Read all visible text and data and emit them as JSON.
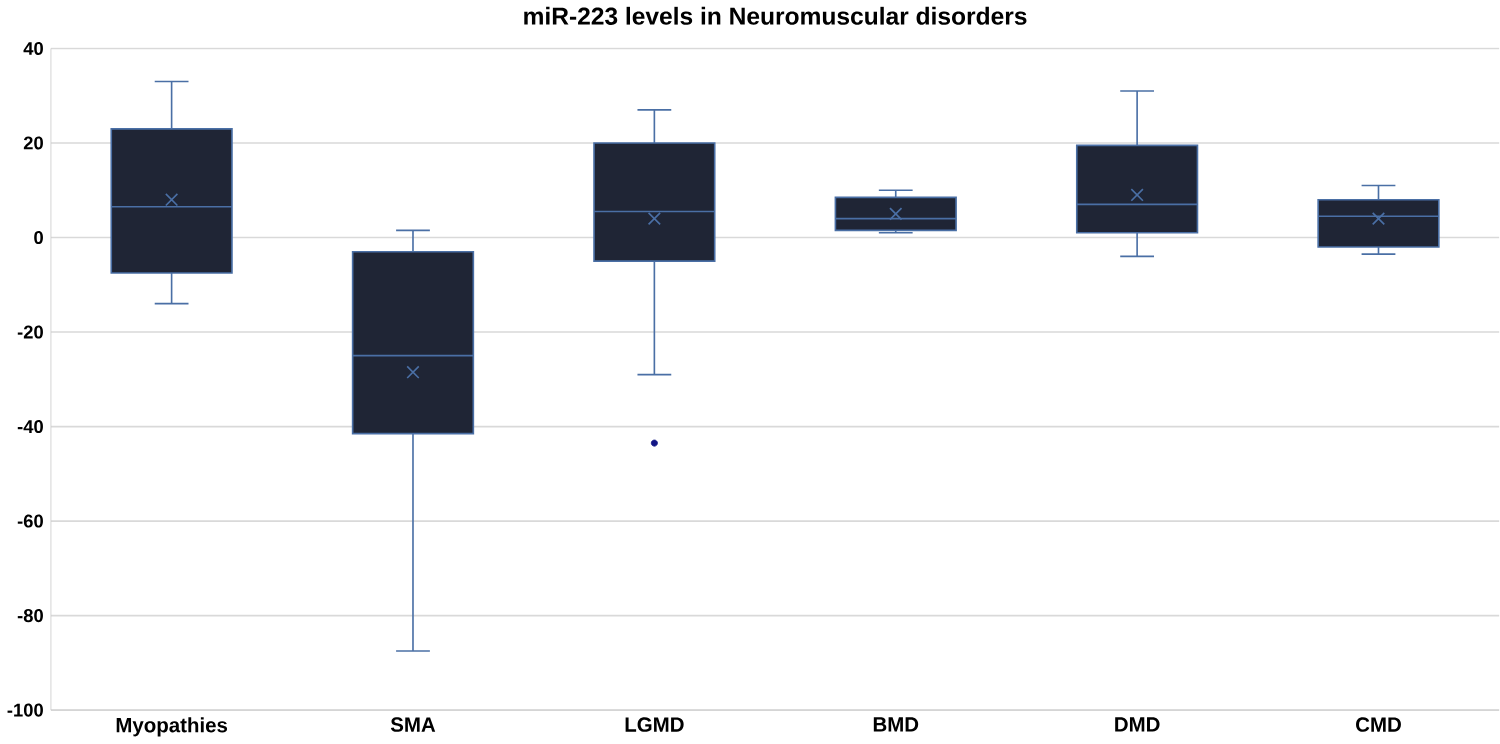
{
  "chart_data": {
    "type": "box",
    "title": "miR-223 levels in Neuromuscular disorders",
    "categories": [
      "Myopathies",
      "SMA",
      "LGMD",
      "BMD",
      "DMD",
      "CMD"
    ],
    "color": "#1f2535",
    "boxes": [
      {
        "low": -14,
        "q1": -7.5,
        "median": 6.5,
        "q3": 23,
        "high": 33,
        "mean": 8
      },
      {
        "low": -87.5,
        "q1": -41.5,
        "median": -25,
        "q3": -3,
        "high": 1.5,
        "mean": -28.5
      },
      {
        "low": -29,
        "q1": -5,
        "median": 5.5,
        "q3": 20,
        "high": 27,
        "mean": 4,
        "outliers": [
          -43.5
        ]
      },
      {
        "low": 1,
        "q1": 1.5,
        "median": 4,
        "q3": 8.5,
        "high": 10,
        "mean": 5
      },
      {
        "low": -4,
        "q1": 1,
        "median": 7,
        "q3": 19.5,
        "high": 31,
        "mean": 9
      },
      {
        "low": -3.5,
        "q1": -2,
        "median": 4.5,
        "q3": 8,
        "high": 11,
        "mean": 4
      }
    ],
    "ylim": [
      -100,
      40
    ],
    "yticks": [
      -100,
      -80,
      -60,
      -40,
      -20,
      0,
      20,
      40
    ],
    "grid": "y"
  }
}
